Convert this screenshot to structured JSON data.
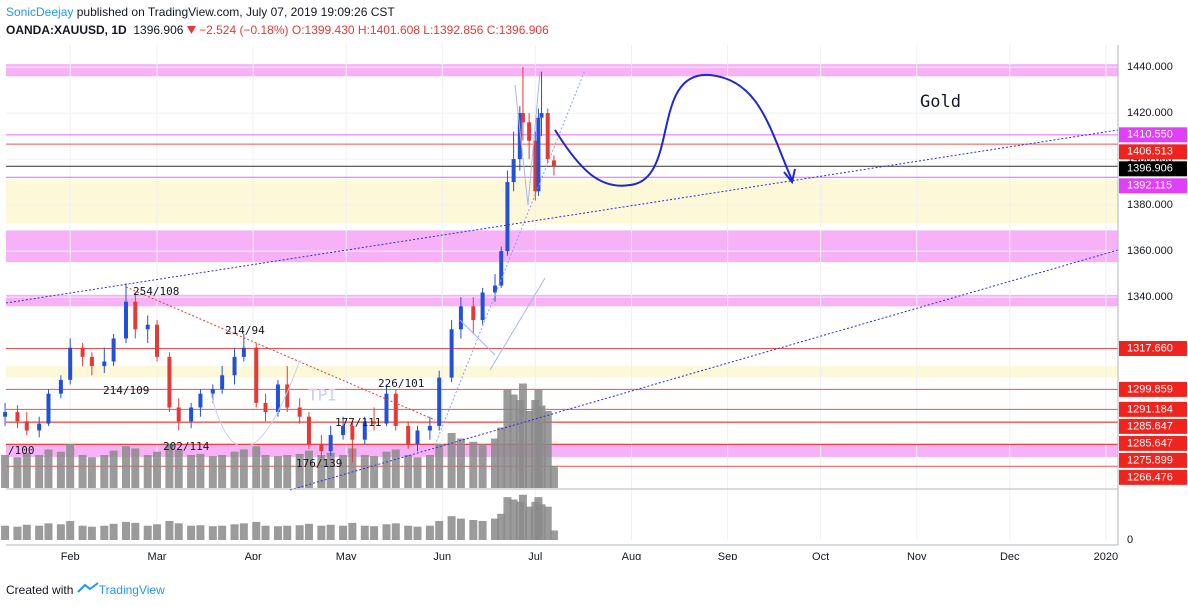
{
  "header": {
    "author": "SonicDeejay",
    "published": "published on TradingView.com, July 07, 2019 19:09:26 CST",
    "symbol": "OANDA:XAUUSD, 1D",
    "price": "1396.906",
    "change": "−2.524 (−0.18%)",
    "ohlc": "O:1399.430 H:1401.608 L:1392.856 C:1396.906"
  },
  "footer": {
    "created": "Created with",
    "brand": "TradingView"
  },
  "chart_data": {
    "type": "candlestick",
    "xlim": [
      10.3,
      368.9
    ],
    "xticks": [
      {
        "value": 31,
        "label": "Feb"
      },
      {
        "value": 59,
        "label": "Mar"
      },
      {
        "value": 90,
        "label": "Apr"
      },
      {
        "value": 120,
        "label": "May"
      },
      {
        "value": 151,
        "label": "Jun"
      },
      {
        "value": 181,
        "label": "Jul"
      },
      {
        "value": 212,
        "label": "Aug"
      },
      {
        "value": 243,
        "label": "Sep"
      },
      {
        "value": 273,
        "label": "Oct"
      },
      {
        "value": 304,
        "label": "Nov"
      },
      {
        "value": 334,
        "label": "Dec"
      },
      {
        "value": 365,
        "label": "2020"
      }
    ],
    "ylim": [
      1257,
      1449.6
    ],
    "yticks": [
      {
        "value": 1340,
        "label": "1340.000"
      },
      {
        "value": 1360,
        "label": "1360.000"
      },
      {
        "value": 1380,
        "label": "1380.000"
      },
      {
        "value": 1400,
        "label": "1400.000"
      },
      {
        "value": 1420,
        "label": "1420.000"
      },
      {
        "value": 1440,
        "label": "1440.000"
      }
    ],
    "volume_ylim": [
      0,
      105
    ],
    "volume_yticks": [
      0
    ],
    "up_color": "#2251d8",
    "down_color": "#e53935",
    "volume_color": "#8a8a8a",
    "grid": true,
    "x": [
      10,
      14,
      17,
      21,
      24,
      28,
      31,
      35,
      38,
      42,
      45,
      49,
      52,
      56,
      59,
      63,
      66,
      70,
      73,
      77,
      80,
      84,
      87,
      91,
      94,
      98,
      101,
      105,
      108,
      112,
      115,
      119,
      122,
      126,
      129,
      133,
      136,
      140,
      143,
      147,
      150,
      154,
      157,
      161,
      164,
      168,
      170,
      172,
      174,
      176,
      177,
      179,
      181,
      182,
      183,
      185,
      187
    ],
    "open": [
      1288,
      1290,
      1286,
      1282,
      1285,
      1298,
      1304,
      1318,
      1314,
      1310,
      1312,
      1322,
      1338,
      1326,
      1328,
      1314,
      1292,
      1286,
      1292,
      1298,
      1300,
      1306,
      1314,
      1318,
      1294,
      1290,
      1302,
      1292,
      1288,
      1276,
      1273,
      1280,
      1284,
      1278,
      1286,
      1285,
      1298,
      1284,
      1276,
      1282,
      1284,
      1305,
      1326,
      1336,
      1330,
      1342,
      1345,
      1360,
      1390,
      1400,
      1420,
      1416,
      1408,
      1386,
      1418,
      1420,
      1399.43
    ],
    "high": [
      1294,
      1293,
      1290,
      1288,
      1300,
      1306,
      1322,
      1320,
      1316,
      1318,
      1324,
      1346,
      1342,
      1332,
      1330,
      1316,
      1296,
      1294,
      1300,
      1302,
      1310,
      1318,
      1324,
      1320,
      1298,
      1304,
      1310,
      1296,
      1290,
      1280,
      1284,
      1288,
      1286,
      1288,
      1292,
      1302,
      1300,
      1286,
      1284,
      1288,
      1308,
      1330,
      1340,
      1340,
      1344,
      1350,
      1362,
      1395,
      1412,
      1423,
      1440,
      1420,
      1412,
      1422,
      1438,
      1422,
      1401.608
    ],
    "low": [
      1284,
      1283,
      1280,
      1279,
      1284,
      1296,
      1302,
      1310,
      1306,
      1307,
      1310,
      1320,
      1322,
      1320,
      1312,
      1290,
      1282,
      1283,
      1288,
      1294,
      1298,
      1302,
      1312,
      1292,
      1286,
      1288,
      1290,
      1285,
      1274,
      1270,
      1271,
      1278,
      1268,
      1276,
      1282,
      1284,
      1282,
      1274,
      1273,
      1278,
      1282,
      1303,
      1322,
      1324,
      1328,
      1338,
      1344,
      1358,
      1386,
      1395,
      1408,
      1400,
      1382,
      1384,
      1410,
      1398,
      1392.856
    ],
    "close": [
      1290,
      1286,
      1282,
      1285,
      1298,
      1304,
      1318,
      1314,
      1310,
      1312,
      1322,
      1338,
      1326,
      1328,
      1314,
      1292,
      1286,
      1292,
      1298,
      1300,
      1306,
      1314,
      1318,
      1294,
      1290,
      1302,
      1292,
      1288,
      1276,
      1273,
      1280,
      1284,
      1278,
      1286,
      1285,
      1298,
      1284,
      1276,
      1282,
      1284,
      1305,
      1326,
      1336,
      1330,
      1342,
      1345,
      1360,
      1390,
      1400,
      1420,
      1416,
      1408,
      1386,
      1418,
      1420,
      1400,
      1396.906
    ],
    "volume": [
      30,
      28,
      32,
      30,
      35,
      33,
      40,
      30,
      28,
      30,
      34,
      38,
      36,
      30,
      33,
      40,
      35,
      30,
      31,
      29,
      30,
      33,
      35,
      38,
      30,
      29,
      30,
      31,
      34,
      30,
      32,
      30,
      36,
      30,
      29,
      33,
      35,
      30,
      28,
      30,
      40,
      50,
      45,
      42,
      40,
      45,
      55,
      90,
      85,
      80,
      95,
      70,
      80,
      90,
      75,
      70,
      20
    ],
    "zones": [
      {
        "from": 1436,
        "to": 1441.3,
        "color": "#f7b2f7"
      },
      {
        "from": 1372,
        "to": 1391,
        "color": "#fdf8d8"
      },
      {
        "from": 1355.2,
        "to": 1369,
        "color": "#f7b2f7"
      },
      {
        "from": 1336,
        "to": 1341,
        "color": "#f7b2f7"
      },
      {
        "from": 1305,
        "to": 1310,
        "color": "#fdf8d8"
      },
      {
        "from": 1270.5,
        "to": 1276.5,
        "color": "#f7b2f7"
      }
    ],
    "price_tags": [
      {
        "value": 1410.55,
        "label": "1410.550",
        "color": "#e040fb"
      },
      {
        "value": 1406.513,
        "label": "1406.513",
        "color": "#f0241e"
      },
      {
        "value": 1396.906,
        "label": "1396.906",
        "color": "#000000"
      },
      {
        "value": 1392.115,
        "label": "1392.115",
        "color": "#e040fb"
      },
      {
        "value": 1317.66,
        "label": "1317.660",
        "color": "#f0241e"
      },
      {
        "value": 1299.859,
        "label": "1299.859",
        "color": "#f0241e"
      },
      {
        "value": 1291.184,
        "label": "1291.184",
        "color": "#f0241e"
      },
      {
        "value": 1285.647,
        "label": "1285.647",
        "color": "#f0241e"
      },
      {
        "value": 1285.647,
        "label": "1285.647",
        "color": "#f0241e"
      },
      {
        "value": 1275.899,
        "label": "1275.899",
        "color": "#f0241e"
      },
      {
        "value": 1266.476,
        "label": "1266.476",
        "color": "#f0241e"
      }
    ],
    "annotations": [
      "254/108",
      "214/94",
      "214/109",
      "202/114",
      "226/101",
      "177/111",
      "176/139",
      "/100",
      "Gold",
      "TPI"
    ]
  }
}
